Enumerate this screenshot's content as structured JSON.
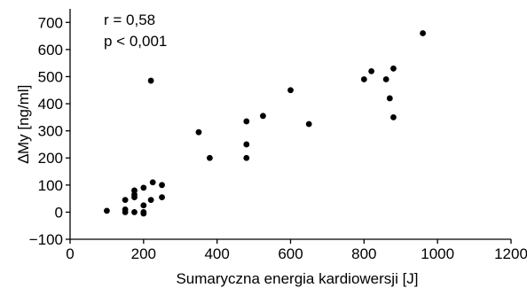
{
  "chart_data": {
    "type": "scatter",
    "title": "",
    "xlabel": "Sumaryczna energia kardiowersji [J]",
    "ylabel": "∆My [ng/ml]",
    "xlim": [
      0,
      1200
    ],
    "ylim": [
      -100,
      750
    ],
    "x_ticks": [
      0,
      200,
      400,
      600,
      800,
      1000,
      1200
    ],
    "y_ticks": [
      -100,
      0,
      100,
      200,
      300,
      400,
      500,
      600,
      700
    ],
    "x_tick_labels": [
      "0",
      "200",
      "400",
      "600",
      "800",
      "1000",
      "1200"
    ],
    "y_tick_labels": [
      "−100",
      "0",
      "100",
      "200",
      "300",
      "400",
      "500",
      "600",
      "700"
    ],
    "grid": false,
    "legend": "none",
    "annotations": [
      "r = 0,58",
      "p < 0,001"
    ],
    "marker_color": "#000000",
    "series": [
      {
        "points": [
          [
            100,
            5
          ],
          [
            150,
            0
          ],
          [
            150,
            10
          ],
          [
            150,
            45
          ],
          [
            175,
            0
          ],
          [
            175,
            55
          ],
          [
            175,
            65
          ],
          [
            175,
            80
          ],
          [
            200,
            -5
          ],
          [
            200,
            0
          ],
          [
            200,
            25
          ],
          [
            200,
            90
          ],
          [
            220,
            45
          ],
          [
            225,
            110
          ],
          [
            250,
            55
          ],
          [
            250,
            100
          ],
          [
            220,
            485
          ],
          [
            350,
            295
          ],
          [
            380,
            200
          ],
          [
            480,
            200
          ],
          [
            480,
            250
          ],
          [
            480,
            335
          ],
          [
            525,
            355
          ],
          [
            600,
            450
          ],
          [
            650,
            325
          ],
          [
            800,
            490
          ],
          [
            820,
            520
          ],
          [
            860,
            490
          ],
          [
            870,
            420
          ],
          [
            880,
            350
          ],
          [
            880,
            530
          ],
          [
            960,
            660
          ]
        ]
      }
    ]
  }
}
